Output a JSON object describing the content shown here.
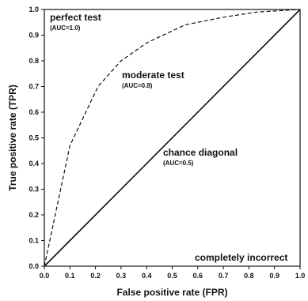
{
  "chart_data": {
    "type": "line",
    "xlabel": "False positive rate (FPR)",
    "ylabel": "True positive rate (TPR)",
    "xlim": [
      0,
      1
    ],
    "ylim": [
      0,
      1
    ],
    "x_ticks": [
      "0.0",
      "0.1",
      "0.2",
      "0.3",
      "0.4",
      "0.5",
      "0.6",
      "0.7",
      "0.8",
      "0.9",
      "1.0"
    ],
    "y_ticks": [
      "0.0",
      "0.1",
      "0.2",
      "0.3",
      "0.4",
      "0.5",
      "0.6",
      "0.7",
      "0.8",
      "0.9",
      "1.0"
    ],
    "grid": false,
    "series": [
      {
        "style": "dashed",
        "x": [
          0.0,
          0.1,
          0.21,
          0.3,
          0.4,
          0.55,
          0.7,
          0.83,
          1.0
        ],
        "y": [
          0.0,
          0.47,
          0.7,
          0.8,
          0.87,
          0.94,
          0.97,
          0.99,
          1.0
        ]
      },
      {
        "style": "solid",
        "x": [
          0.0,
          1.0
        ],
        "y": [
          0.0,
          1.0
        ]
      }
    ],
    "annotations": [
      {
        "text": "perfect test",
        "sub": "(AUC=1.0)"
      },
      {
        "text": "moderate test",
        "sub": "(AUC=0.8)"
      },
      {
        "text": "chance diagonal",
        "sub": "(AUC=0.5)"
      },
      {
        "text": "completely incorrect",
        "sub": ""
      }
    ]
  }
}
